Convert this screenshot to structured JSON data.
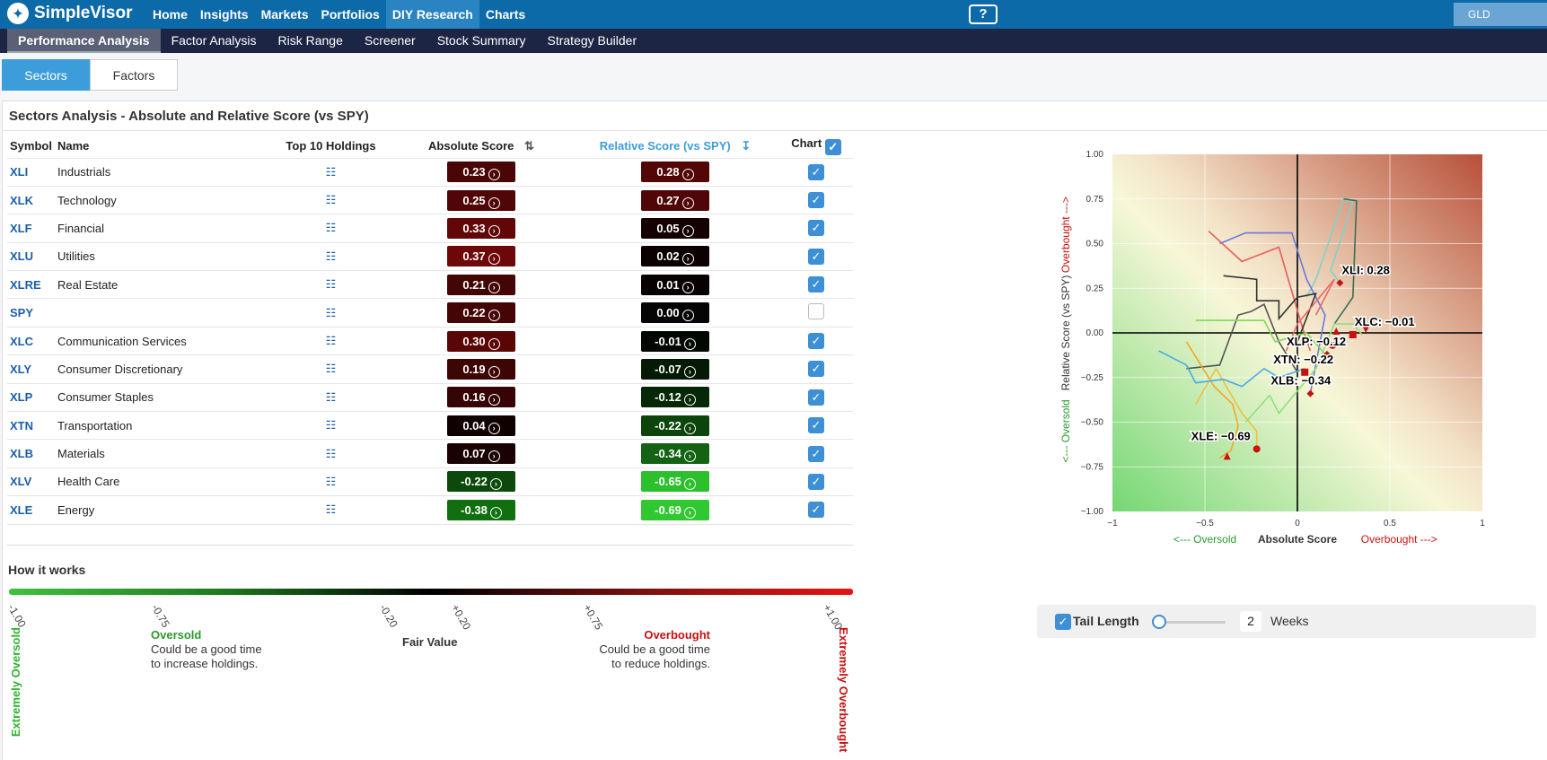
{
  "app": {
    "name": "SimpleVisor"
  },
  "nav": [
    {
      "label": "Home"
    },
    {
      "label": "Insights"
    },
    {
      "label": "Markets"
    },
    {
      "label": "Portfolios"
    },
    {
      "label": "DIY Research",
      "active": true
    },
    {
      "label": "Charts"
    }
  ],
  "help_icon": "help-video-icon",
  "ticker_box": "GLD",
  "subnav": [
    {
      "label": "Performance Analysis",
      "active": true
    },
    {
      "label": "Factor Analysis"
    },
    {
      "label": "Risk Range"
    },
    {
      "label": "Screener"
    },
    {
      "label": "Stock Summary"
    },
    {
      "label": "Strategy Builder"
    }
  ],
  "tabs": [
    {
      "label": "Sectors",
      "active": true
    },
    {
      "label": "Factors"
    }
  ],
  "panel_title": "Sectors Analysis - Absolute and Relative Score (vs SPY)",
  "table": {
    "headers": {
      "symbol": "Symbol",
      "name": "Name",
      "holdings": "Top 10 Holdings",
      "absolute": "Absolute Score",
      "relative": "Relative Score (vs SPY)",
      "chart": "Chart"
    },
    "rows": [
      {
        "symbol": "XLI",
        "name": "Industrials",
        "abs": "0.23",
        "rel": "0.28",
        "abs_color": "#4a0606",
        "rel_color": "#520606",
        "checked": true
      },
      {
        "symbol": "XLK",
        "name": "Technology",
        "abs": "0.25",
        "rel": "0.27",
        "abs_color": "#500606",
        "rel_color": "#500606",
        "checked": true
      },
      {
        "symbol": "XLF",
        "name": "Financial",
        "abs": "0.33",
        "rel": "0.05",
        "abs_color": "#620707",
        "rel_color": "#140202",
        "checked": true
      },
      {
        "symbol": "XLU",
        "name": "Utilities",
        "abs": "0.37",
        "rel": "0.02",
        "abs_color": "#6e0808",
        "rel_color": "#0c0101",
        "checked": true
      },
      {
        "symbol": "XLRE",
        "name": "Real Estate",
        "abs": "0.21",
        "rel": "0.01",
        "abs_color": "#440505",
        "rel_color": "#080101",
        "checked": true
      },
      {
        "symbol": "SPY",
        "name": "",
        "abs": "0.22",
        "rel": "0.00",
        "abs_color": "#460505",
        "rel_color": "#050505",
        "checked": false
      },
      {
        "symbol": "XLC",
        "name": "Communication Services",
        "abs": "0.30",
        "rel": "-0.01",
        "abs_color": "#5a0606",
        "rel_color": "#010801",
        "checked": true
      },
      {
        "symbol": "XLY",
        "name": "Consumer Discretionary",
        "abs": "0.19",
        "rel": "-0.07",
        "abs_color": "#3e0505",
        "rel_color": "#041a04",
        "checked": true
      },
      {
        "symbol": "XLP",
        "name": "Consumer Staples",
        "abs": "0.16",
        "rel": "-0.12",
        "abs_color": "#360404",
        "rel_color": "#062806",
        "checked": true
      },
      {
        "symbol": "XTN",
        "name": "Transportation",
        "abs": "0.04",
        "rel": "-0.22",
        "abs_color": "#100101",
        "rel_color": "#0c440c",
        "checked": true
      },
      {
        "symbol": "XLB",
        "name": "Materials",
        "abs": "0.07",
        "rel": "-0.34",
        "abs_color": "#1a0202",
        "rel_color": "#146214",
        "checked": true
      },
      {
        "symbol": "XLV",
        "name": "Health Care",
        "abs": "-0.22",
        "rel": "-0.65",
        "abs_color": "#0c4a0c",
        "rel_color": "#2cc02c",
        "checked": true
      },
      {
        "symbol": "XLE",
        "name": "Energy",
        "abs": "-0.38",
        "rel": "-0.69",
        "abs_color": "#107010",
        "rel_color": "#30c830",
        "checked": true
      }
    ]
  },
  "how": {
    "title": "How it works",
    "ticks": [
      "-1.00",
      "-0.75",
      "-0.20",
      "+0.20",
      "+0.75",
      "+1.00"
    ],
    "extreme_oversold": "Extremely Oversold",
    "extreme_overbought": "Extremely Overbought",
    "oversold_title": "Oversold",
    "oversold_text1": "Could be a good time",
    "oversold_text2": "to increase holdings.",
    "fair": "Fair Value",
    "overbought_title": "Overbought",
    "overbought_text1": "Could be a good time",
    "overbought_text2": "to reduce holdings.",
    "colors": {
      "oversold": "#2db52d",
      "overbought": "#c81010"
    }
  },
  "chart_data": {
    "type": "scatter",
    "xlabel": "Absolute Score",
    "xlabel_left": "<--- Oversold",
    "xlabel_right": "Overbought --->",
    "ylabel": "Relative Score (vs SPY)",
    "ylabel_bottom": "<--- Oversold",
    "ylabel_top": "Overbought --->",
    "xlim": [
      -1,
      1
    ],
    "ylim": [
      -1,
      1
    ],
    "xticks": [
      "−1",
      "−0.5",
      "0",
      "0.5",
      "1"
    ],
    "yticks": [
      "1.00",
      "0.75",
      "0.50",
      "0.25",
      "0.00",
      "−0.25",
      "−0.50",
      "−0.75",
      "−1.00"
    ],
    "grid": true,
    "labels": [
      {
        "text": "XLI: 0.28",
        "x": 0.23,
        "y": 0.28
      },
      {
        "text": "XLC: −0.01",
        "x": 0.3,
        "y": -0.01
      },
      {
        "text": "XLP: −0.12",
        "x": 0.16,
        "y": -0.12
      },
      {
        "text": "XTN: −0.22",
        "x": 0.04,
        "y": -0.22
      },
      {
        "text": "XLB: −0.34",
        "x": 0.07,
        "y": -0.34
      },
      {
        "text": "XLE: −0.69",
        "x": -0.22,
        "y": -0.65
      }
    ],
    "tails": [
      {
        "color": "#7fd3c8",
        "pts": [
          [
            0.05,
            0.2
          ],
          [
            0.1,
            0.3
          ],
          [
            0.2,
            0.6
          ],
          [
            0.25,
            0.75
          ],
          [
            0.3,
            0.73
          ],
          [
            0.18,
            0.35
          ],
          [
            0.23,
            0.28
          ]
        ]
      },
      {
        "color": "#3a6e5a",
        "pts": [
          [
            0.25,
            0.75
          ],
          [
            0.32,
            0.74
          ],
          [
            0.3,
            0.2
          ],
          [
            0.2,
            0.05
          ]
        ]
      },
      {
        "color": "#e85d5d",
        "pts": [
          [
            -0.48,
            0.57
          ],
          [
            -0.3,
            0.4
          ],
          [
            -0.1,
            0.48
          ],
          [
            0.03,
            0.02
          ],
          [
            0.07,
            -0.1
          ]
        ]
      },
      {
        "color": "#6a78e0",
        "pts": [
          [
            -0.42,
            0.5
          ],
          [
            -0.28,
            0.56
          ],
          [
            -0.03,
            0.56
          ],
          [
            0.05,
            0.3
          ],
          [
            0.15,
            0.1
          ],
          [
            0.07,
            -0.34
          ]
        ]
      },
      {
        "color": "#333",
        "pts": [
          [
            -0.4,
            0.32
          ],
          [
            -0.22,
            0.3
          ],
          [
            -0.22,
            0.18
          ],
          [
            -0.1,
            0.18
          ],
          [
            -0.1,
            0.08
          ],
          [
            0.0,
            0.2
          ],
          [
            0.1,
            0.22
          ],
          [
            0.0,
            -0.05
          ],
          [
            0.0,
            -0.35
          ]
        ]
      },
      {
        "color": "#555",
        "pts": [
          [
            -0.6,
            -0.2
          ],
          [
            -0.42,
            -0.18
          ],
          [
            -0.32,
            0.1
          ],
          [
            -0.25,
            0.12
          ],
          [
            -0.18,
            0.16
          ],
          [
            -0.1,
            -0.05
          ],
          [
            0.0,
            -0.22
          ]
        ]
      },
      {
        "color": "#f5a623",
        "pts": [
          [
            -0.6,
            -0.05
          ],
          [
            -0.45,
            -0.3
          ],
          [
            -0.35,
            -0.4
          ],
          [
            -0.32,
            -0.52
          ],
          [
            -0.36,
            -0.66
          ],
          [
            -0.42,
            -0.7
          ]
        ]
      },
      {
        "color": "#f0c040",
        "pts": [
          [
            -0.55,
            -0.4
          ],
          [
            -0.44,
            -0.2
          ],
          [
            -0.3,
            -0.45
          ],
          [
            -0.22,
            -0.55
          ],
          [
            -0.22,
            -0.65
          ]
        ]
      },
      {
        "color": "#4aa8e8",
        "pts": [
          [
            -0.75,
            -0.1
          ],
          [
            -0.6,
            -0.18
          ],
          [
            -0.55,
            -0.28
          ],
          [
            -0.4,
            -0.26
          ],
          [
            -0.3,
            -0.3
          ],
          [
            -0.18,
            -0.2
          ],
          [
            -0.1,
            -0.25
          ],
          [
            0.04,
            -0.2
          ]
        ]
      },
      {
        "color": "#7ed957",
        "pts": [
          [
            -0.55,
            0.07
          ],
          [
            -0.18,
            0.07
          ],
          [
            -0.12,
            -0.05
          ],
          [
            0.05,
            0.0
          ],
          [
            0.15,
            -0.12
          ]
        ]
      },
      {
        "color": "#8fe07a",
        "pts": [
          [
            -0.28,
            -0.5
          ],
          [
            -0.15,
            -0.35
          ],
          [
            -0.1,
            -0.45
          ],
          [
            0.02,
            -0.3
          ],
          [
            0.1,
            -0.2
          ],
          [
            0.2,
            0.05
          ],
          [
            0.3,
            0.05
          ],
          [
            0.35,
            -0.01
          ]
        ]
      },
      {
        "color": "#e66",
        "pts": [
          [
            -0.06,
            -0.1
          ],
          [
            0.0,
            0.05
          ],
          [
            0.2,
            0.3
          ],
          [
            0.1,
            0.1
          ]
        ]
      }
    ],
    "markers": [
      {
        "x": 0.23,
        "y": 0.28,
        "shape": "diamond"
      },
      {
        "x": 0.3,
        "y": -0.01,
        "shape": "square"
      },
      {
        "x": 0.37,
        "y": 0.02,
        "shape": "tri-down"
      },
      {
        "x": 0.21,
        "y": 0.01,
        "shape": "tri-up"
      },
      {
        "x": 0.19,
        "y": -0.07,
        "shape": "circle"
      },
      {
        "x": 0.16,
        "y": -0.12,
        "shape": "diamond"
      },
      {
        "x": 0.04,
        "y": -0.22,
        "shape": "square"
      },
      {
        "x": 0.07,
        "y": -0.34,
        "shape": "diamond"
      },
      {
        "x": -0.22,
        "y": -0.65,
        "shape": "circle"
      },
      {
        "x": -0.38,
        "y": -0.69,
        "shape": "tri-up"
      }
    ],
    "label_colors": {
      "overbought": "#c81010",
      "oversold": "#2a9a2a"
    }
  },
  "tail": {
    "label": "Tail Length",
    "value": "2",
    "unit": "Weeks",
    "slider_fraction": 0.0
  }
}
